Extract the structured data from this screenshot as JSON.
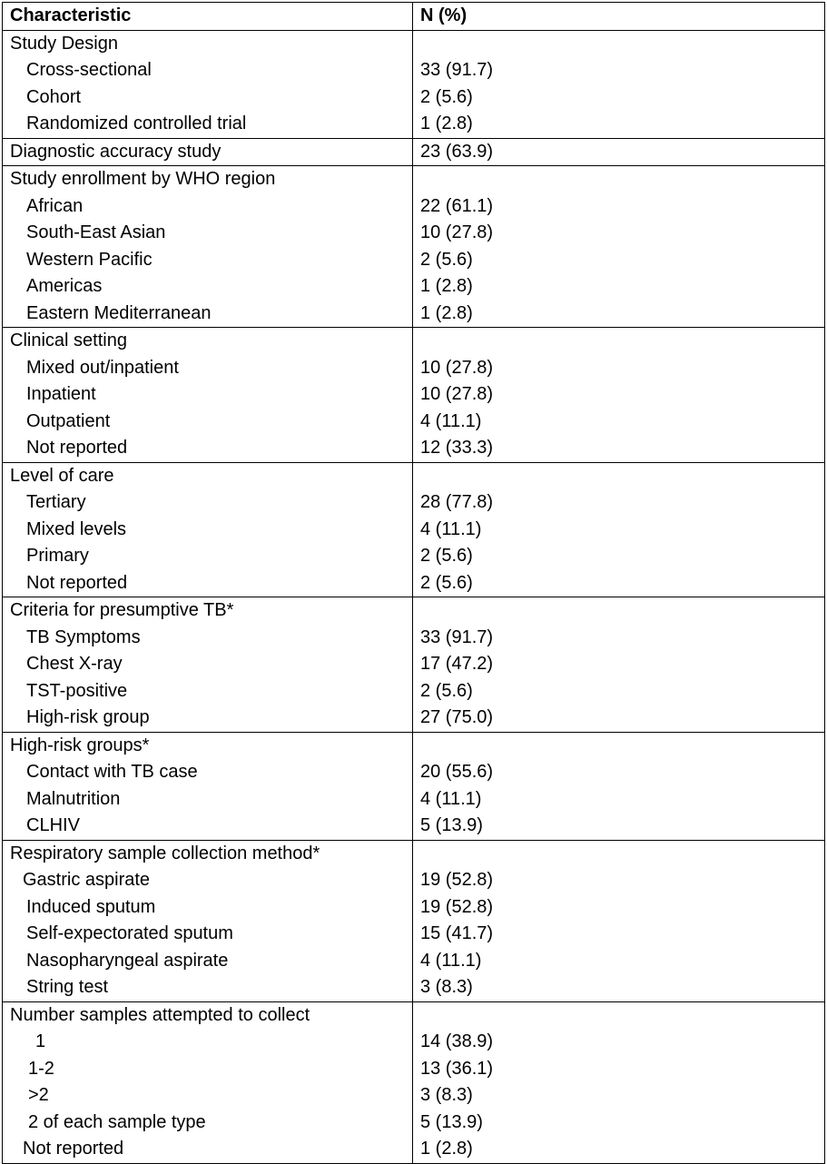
{
  "header": {
    "col1": "Characteristic",
    "col2": "N (%)"
  },
  "rows": [
    {
      "label": "Study Design",
      "value": "",
      "indent": 0,
      "group_start": true
    },
    {
      "label": "Cross-sectional",
      "value": "33 (91.7)",
      "indent": 1
    },
    {
      "label": "Cohort",
      "value": "2 (5.6)",
      "indent": 1
    },
    {
      "label": "Randomized controlled trial",
      "value": "1 (2.8)",
      "indent": 1
    },
    {
      "label": "Diagnostic accuracy study",
      "value": "23 (63.9)",
      "indent": 0,
      "group_start": true
    },
    {
      "label": "Study enrollment by WHO region",
      "value": "",
      "indent": 0,
      "group_start": true
    },
    {
      "label": "African",
      "value": "22 (61.1)",
      "indent": 1
    },
    {
      "label": "South-East Asian",
      "value": "10 (27.8)",
      "indent": 1
    },
    {
      "label": "Western Pacific",
      "value": "2 (5.6)",
      "indent": 1
    },
    {
      "label": "Americas",
      "value": "1 (2.8)",
      "indent": 1
    },
    {
      "label": "Eastern Mediterranean",
      "value": "1 (2.8)",
      "indent": 1
    },
    {
      "label": "Clinical setting",
      "value": "",
      "indent": 0,
      "group_start": true
    },
    {
      "label": "Mixed out/inpatient",
      "value": "10 (27.8)",
      "indent": 1
    },
    {
      "label": "Inpatient",
      "value": "10 (27.8)",
      "indent": 1
    },
    {
      "label": "Outpatient",
      "value": "4 (11.1)",
      "indent": 1
    },
    {
      "label": "Not reported",
      "value": "12 (33.3)",
      "indent": 1
    },
    {
      "label": "Level of care",
      "value": "",
      "indent": 0,
      "group_start": true
    },
    {
      "label": "Tertiary",
      "value": "28 (77.8)",
      "indent": 1
    },
    {
      "label": "Mixed levels",
      "value": "4 (11.1)",
      "indent": 1
    },
    {
      "label": "Primary",
      "value": "2 (5.6)",
      "indent": 1
    },
    {
      "label": "Not reported",
      "value": "2 (5.6)",
      "indent": 1
    },
    {
      "label": "Criteria for presumptive TB*",
      "value": "",
      "indent": 0,
      "group_start": true
    },
    {
      "label": "TB Symptoms",
      "value": "33 (91.7)",
      "indent": 1
    },
    {
      "label": "Chest X-ray",
      "value": "17 (47.2)",
      "indent": 1
    },
    {
      "label": "TST-positive",
      "value": "2 (5.6)",
      "indent": 1
    },
    {
      "label": "High-risk group",
      "value": "27 (75.0)",
      "indent": 1
    },
    {
      "label": "High-risk groups*",
      "value": "",
      "indent": 0,
      "group_start": true
    },
    {
      "label": "Contact with TB case",
      "value": "20 (55.6)",
      "indent": 1
    },
    {
      "label": "Malnutrition",
      "value": "4 (11.1)",
      "indent": 1
    },
    {
      "label": "CLHIV",
      "value": "5 (13.9)",
      "indent": 1
    },
    {
      "label": "Respiratory sample collection method*",
      "value": "",
      "indent": 0,
      "group_start": true
    },
    {
      "label": "Gastric aspirate",
      "value": "19 (52.8)",
      "indent": 2
    },
    {
      "label": "Induced sputum",
      "value": "19 (52.8)",
      "indent": 1
    },
    {
      "label": "Self-expectorated sputum",
      "value": "15 (41.7)",
      "indent": 1
    },
    {
      "label": "Nasopharyngeal aspirate",
      "value": "4 (11.1)",
      "indent": 1
    },
    {
      "label": "String test",
      "value": "3 (8.3)",
      "indent": 1
    },
    {
      "label": "Number samples attempted to collect",
      "value": "",
      "indent": 0,
      "group_start": true
    },
    {
      "label": "1",
      "value": "14 (38.9)",
      "indent": 3
    },
    {
      "label": "1-2",
      "value": "13 (36.1)",
      "indent": 4
    },
    {
      "label": ">2",
      "value": "3 (8.3)",
      "indent": 4
    },
    {
      "label": "2 of each sample type",
      "value": "5 (13.9)",
      "indent": 4
    },
    {
      "label": "Not reported",
      "value": "1 (2.8)",
      "indent": 5
    }
  ]
}
